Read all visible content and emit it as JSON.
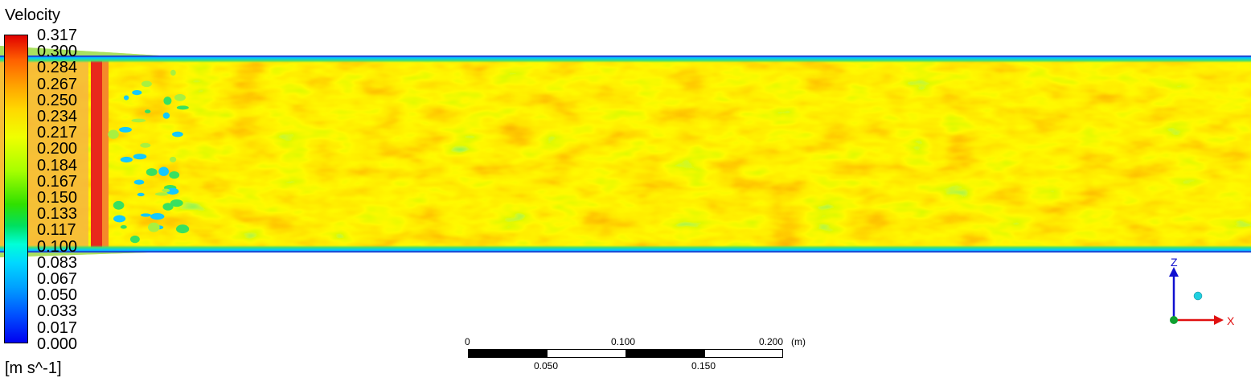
{
  "legend": {
    "title": "Velocity",
    "unit": "[m s^-1]",
    "labels": [
      "0.317",
      "0.300",
      "0.284",
      "0.267",
      "0.250",
      "0.234",
      "0.217",
      "0.200",
      "0.184",
      "0.167",
      "0.150",
      "0.133",
      "0.117",
      "0.100",
      "0.083",
      "0.067",
      "0.050",
      "0.033",
      "0.017",
      "0.000"
    ]
  },
  "scale_bar": {
    "top_labels": [
      "0",
      "0.100",
      "0.200"
    ],
    "unit": "(m)",
    "bottom_labels": [
      "0.050",
      "0.150"
    ]
  },
  "axes": {
    "z_label": "Z",
    "x_label": "X",
    "z_color": "#1010d0",
    "x_color": "#e01010"
  }
}
